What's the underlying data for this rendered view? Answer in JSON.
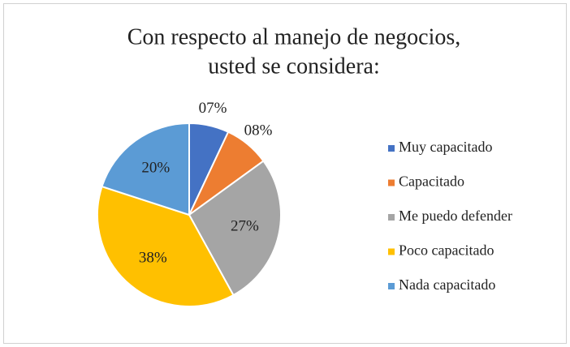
{
  "chart_data": {
    "type": "pie",
    "title": [
      "Con respecto al manejo de negocios,",
      "usted se considera:"
    ],
    "categories": [
      "Muy capacitado",
      "Capacitado",
      "Me puedo defender",
      "Poco capacitado",
      "Nada capacitado"
    ],
    "values": [
      7,
      8,
      27,
      38,
      20
    ],
    "value_labels": [
      "07%",
      "08%",
      "27%",
      "38%",
      "20%"
    ],
    "colors": [
      "#4472c4",
      "#ed7d31",
      "#a5a5a5",
      "#ffc000",
      "#5b9bd5"
    ],
    "legend": "right"
  }
}
